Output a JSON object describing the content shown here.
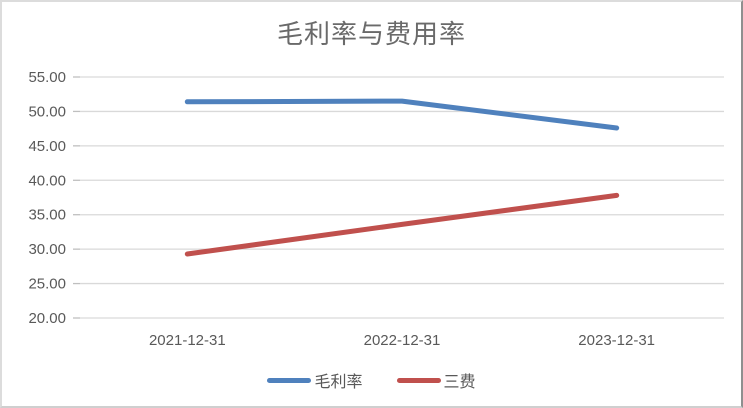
{
  "chart_data": {
    "type": "line",
    "title": "毛利率与费用率",
    "categories": [
      "2021-12-31",
      "2022-12-31",
      "2023-12-31"
    ],
    "series": [
      {
        "name": "毛利率",
        "color": "#4F81BD",
        "values": [
          51.4,
          51.5,
          47.6
        ]
      },
      {
        "name": "三费",
        "color": "#C0504D",
        "values": [
          29.3,
          33.6,
          37.8
        ]
      }
    ],
    "y_axis": {
      "min": 20,
      "max": 55,
      "step": 5,
      "tick_labels": [
        "20.00",
        "25.00",
        "30.00",
        "35.00",
        "40.00",
        "45.00",
        "50.00",
        "55.00"
      ]
    },
    "xlabel": "",
    "ylabel": "",
    "grid": true,
    "legend_position": "bottom",
    "text_color": "#595959",
    "gridline_color": "#d9d9d9",
    "tick_mark_color": "#bfbfbf",
    "line_width": 5
  }
}
